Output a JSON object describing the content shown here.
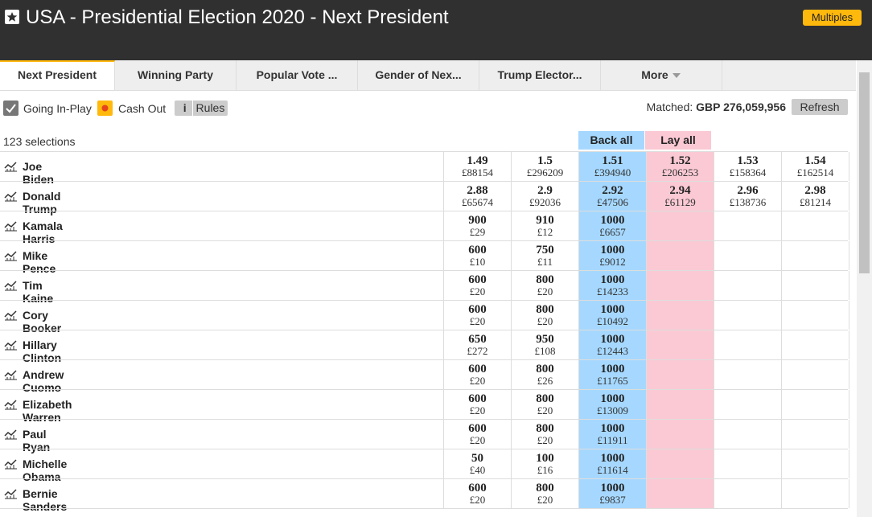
{
  "header": {
    "title": "USA - Presidential Election 2020 - Next President",
    "multiples": "Multiples"
  },
  "tabs": [
    "Next President",
    "Winning Party",
    "Popular Vote ...",
    "Gender of Nex...",
    "Trump Elector...",
    "More"
  ],
  "toolbar": {
    "in_play": "Going In-Play",
    "cash_out": "Cash Out",
    "rules_icon": "i",
    "rules": "Rules",
    "matched_label": "Matched:",
    "matched_value": "GBP 276,059,956",
    "refresh": "Refresh"
  },
  "market": {
    "selections": "123 selections",
    "back_all": "Back all",
    "lay_all": "Lay all",
    "rows": [
      {
        "name": "Joe Biden",
        "back": [
          {
            "price": 1.49,
            "amount": "£88154"
          },
          {
            "price": 1.5,
            "amount": "£296209"
          },
          {
            "price": 1.51,
            "amount": "£394940"
          }
        ],
        "lay": [
          {
            "price": 1.52,
            "amount": "£206253"
          },
          {
            "price": 1.53,
            "amount": "£158364"
          },
          {
            "price": 1.54,
            "amount": "£162514"
          }
        ]
      },
      {
        "name": "Donald Trump",
        "back": [
          {
            "price": 2.88,
            "amount": "£65674"
          },
          {
            "price": 2.9,
            "amount": "£92036"
          },
          {
            "price": 2.92,
            "amount": "£47506"
          }
        ],
        "lay": [
          {
            "price": 2.94,
            "amount": "£61129"
          },
          {
            "price": 2.96,
            "amount": "£138736"
          },
          {
            "price": 2.98,
            "amount": "£81214"
          }
        ]
      },
      {
        "name": "Kamala Harris",
        "back": [
          {
            "price": 900,
            "amount": "£29"
          },
          {
            "price": 910,
            "amount": "£12"
          },
          {
            "price": 1000,
            "amount": "£6657"
          }
        ],
        "lay": []
      },
      {
        "name": "Mike Pence",
        "back": [
          {
            "price": 600,
            "amount": "£10"
          },
          {
            "price": 750,
            "amount": "£11"
          },
          {
            "price": 1000,
            "amount": "£9012"
          }
        ],
        "lay": []
      },
      {
        "name": "Tim Kaine",
        "back": [
          {
            "price": 600,
            "amount": "£20"
          },
          {
            "price": 800,
            "amount": "£20"
          },
          {
            "price": 1000,
            "amount": "£14233"
          }
        ],
        "lay": []
      },
      {
        "name": "Cory Booker",
        "back": [
          {
            "price": 600,
            "amount": "£20"
          },
          {
            "price": 800,
            "amount": "£20"
          },
          {
            "price": 1000,
            "amount": "£10492"
          }
        ],
        "lay": []
      },
      {
        "name": "Hillary Clinton",
        "back": [
          {
            "price": 650,
            "amount": "£272"
          },
          {
            "price": 950,
            "amount": "£108"
          },
          {
            "price": 1000,
            "amount": "£12443"
          }
        ],
        "lay": []
      },
      {
        "name": "Andrew Cuomo",
        "back": [
          {
            "price": 600,
            "amount": "£20"
          },
          {
            "price": 800,
            "amount": "£26"
          },
          {
            "price": 1000,
            "amount": "£11765"
          }
        ],
        "lay": []
      },
      {
        "name": "Elizabeth Warren",
        "back": [
          {
            "price": 600,
            "amount": "£20"
          },
          {
            "price": 800,
            "amount": "£20"
          },
          {
            "price": 1000,
            "amount": "£13009"
          }
        ],
        "lay": []
      },
      {
        "name": "Paul Ryan",
        "back": [
          {
            "price": 600,
            "amount": "£20"
          },
          {
            "price": 800,
            "amount": "£20"
          },
          {
            "price": 1000,
            "amount": "£11911"
          }
        ],
        "lay": []
      },
      {
        "name": "Michelle Obama",
        "back": [
          {
            "price": 50,
            "amount": "£40"
          },
          {
            "price": 100,
            "amount": "£16"
          },
          {
            "price": 1000,
            "amount": "£11614"
          }
        ],
        "lay": []
      },
      {
        "name": "Bernie Sanders",
        "back": [
          {
            "price": 600,
            "amount": "£20"
          },
          {
            "price": 800,
            "amount": "£20"
          },
          {
            "price": 1000,
            "amount": "£9837"
          }
        ],
        "lay": []
      }
    ]
  }
}
